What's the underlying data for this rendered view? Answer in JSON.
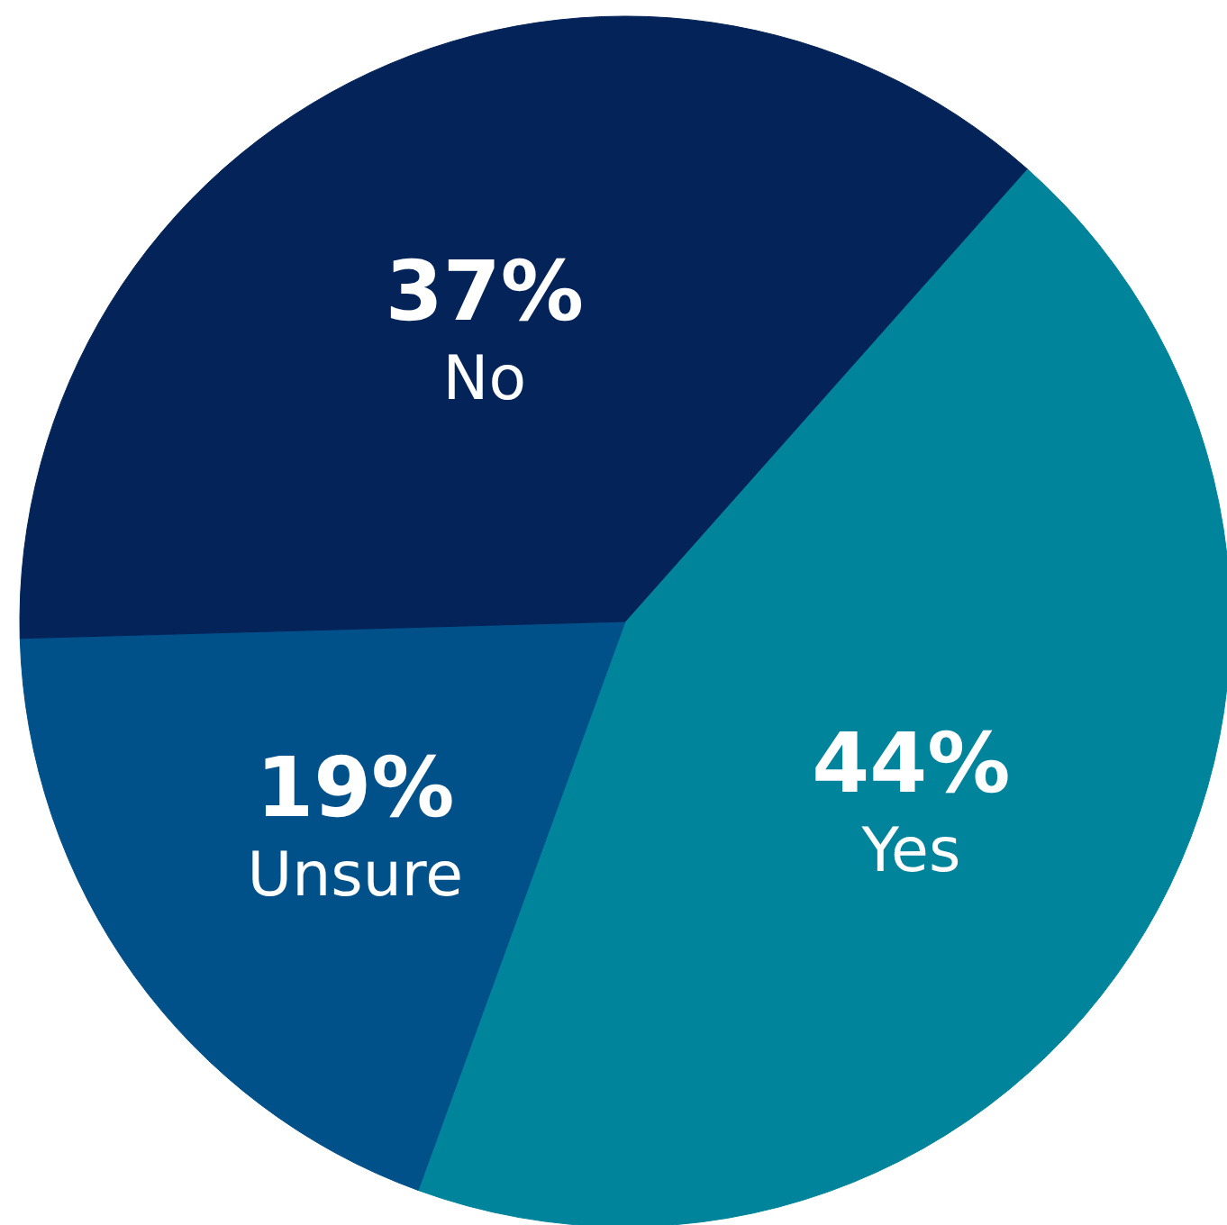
{
  "chart_data": {
    "type": "pie",
    "categories": [
      "Yes",
      "Unsure",
      "No"
    ],
    "values": [
      44,
      19,
      37
    ],
    "colors": [
      "#00849c",
      "#00508a",
      "#042359"
    ],
    "value_labels": [
      "44%",
      "19%",
      "37%"
    ]
  }
}
